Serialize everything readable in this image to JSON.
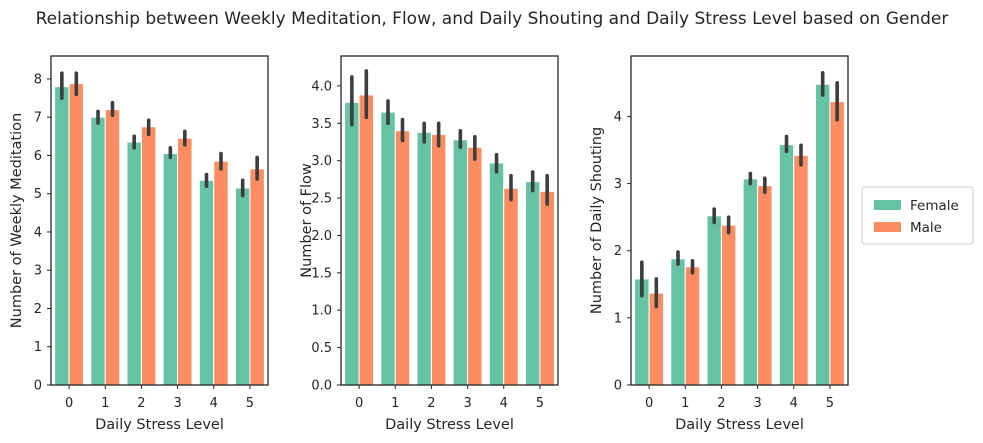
{
  "figure": {
    "title": "Relationship between Weekly Meditation, Flow, and Daily Shouting and Daily Stress Level based on Gender"
  },
  "legend": {
    "position": "right",
    "items": [
      {
        "label": "Female",
        "color": "#66c2a5"
      },
      {
        "label": "Male",
        "color": "#fc8d62"
      }
    ]
  },
  "chart_data": [
    {
      "type": "bar",
      "title": "",
      "xlabel": "Daily Stress Level",
      "ylabel": "Number of Weekly Meditation",
      "categories": [
        "0",
        "1",
        "2",
        "3",
        "4",
        "5"
      ],
      "ylim": [
        0,
        8.6
      ],
      "yticks": [
        0,
        1,
        2,
        3,
        4,
        5,
        6,
        7,
        8
      ],
      "ytick_labels": [
        "0",
        "1",
        "2",
        "3",
        "4",
        "5",
        "6",
        "7",
        "8"
      ],
      "grid": false,
      "series": [
        {
          "name": "Female",
          "color": "#66c2a5",
          "values": [
            7.8,
            7.0,
            6.35,
            6.05,
            5.35,
            5.15
          ],
          "ci": [
            [
              7.5,
              8.15
            ],
            [
              6.85,
              7.15
            ],
            [
              6.2,
              6.5
            ],
            [
              5.95,
              6.2
            ],
            [
              5.2,
              5.5
            ],
            [
              4.95,
              5.35
            ]
          ]
        },
        {
          "name": "Male",
          "color": "#fc8d62",
          "values": [
            7.88,
            7.2,
            6.75,
            6.45,
            5.85,
            5.65
          ],
          "ci": [
            [
              7.6,
              8.15
            ],
            [
              7.05,
              7.38
            ],
            [
              6.55,
              6.92
            ],
            [
              6.28,
              6.63
            ],
            [
              5.65,
              6.05
            ],
            [
              5.38,
              5.95
            ]
          ]
        }
      ]
    },
    {
      "type": "bar",
      "title": "",
      "xlabel": "Daily Stress Level",
      "ylabel": "Number of Flow",
      "categories": [
        "0",
        "1",
        "2",
        "3",
        "4",
        "5"
      ],
      "ylim": [
        0,
        4.4
      ],
      "yticks": [
        0,
        0.5,
        1,
        1.5,
        2,
        2.5,
        3,
        3.5,
        4
      ],
      "ytick_labels": [
        "0.0",
        "0.5",
        "1.0",
        "1.5",
        "2.0",
        "2.5",
        "3.0",
        "3.5",
        "4.0"
      ],
      "grid": false,
      "series": [
        {
          "name": "Female",
          "color": "#66c2a5",
          "values": [
            3.78,
            3.65,
            3.38,
            3.28,
            2.97,
            2.72
          ],
          "ci": [
            [
              3.48,
              4.12
            ],
            [
              3.5,
              3.8
            ],
            [
              3.25,
              3.5
            ],
            [
              3.18,
              3.4
            ],
            [
              2.85,
              3.08
            ],
            [
              2.6,
              2.85
            ]
          ]
        },
        {
          "name": "Male",
          "color": "#fc8d62",
          "values": [
            3.88,
            3.4,
            3.35,
            3.18,
            2.63,
            2.59
          ],
          "ci": [
            [
              3.58,
              4.2
            ],
            [
              3.27,
              3.55
            ],
            [
              3.2,
              3.5
            ],
            [
              3.02,
              3.32
            ],
            [
              2.48,
              2.8
            ],
            [
              2.42,
              2.8
            ]
          ]
        }
      ]
    },
    {
      "type": "bar",
      "title": "",
      "xlabel": "Daily Stress Level",
      "ylabel": "Number of Daily Shouting",
      "categories": [
        "0",
        "1",
        "2",
        "3",
        "4",
        "5"
      ],
      "ylim": [
        0,
        4.9
      ],
      "yticks": [
        0,
        1,
        2,
        3,
        4
      ],
      "ytick_labels": [
        "0",
        "1",
        "2",
        "3",
        "4"
      ],
      "grid": false,
      "series": [
        {
          "name": "Female",
          "color": "#66c2a5",
          "values": [
            1.58,
            1.88,
            2.52,
            3.07,
            3.58,
            4.48
          ],
          "ci": [
            [
              1.33,
              1.83
            ],
            [
              1.8,
              1.98
            ],
            [
              2.42,
              2.62
            ],
            [
              3.0,
              3.15
            ],
            [
              3.48,
              3.7
            ],
            [
              4.32,
              4.65
            ]
          ]
        },
        {
          "name": "Male",
          "color": "#fc8d62",
          "values": [
            1.37,
            1.76,
            2.38,
            2.97,
            3.42,
            4.22
          ],
          "ci": [
            [
              1.17,
              1.58
            ],
            [
              1.67,
              1.85
            ],
            [
              2.27,
              2.5
            ],
            [
              2.87,
              3.08
            ],
            [
              3.28,
              3.57
            ],
            [
              3.95,
              4.5
            ]
          ]
        }
      ]
    }
  ]
}
